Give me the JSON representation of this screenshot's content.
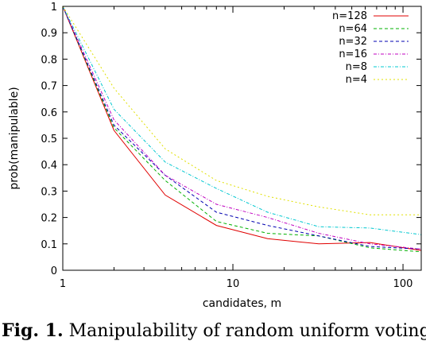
{
  "chart_data": {
    "type": "line",
    "xlabel": "candidates, m",
    "ylabel": "prob(manipulable)",
    "x_scale": "log",
    "xlim": [
      1,
      128
    ],
    "ylim": [
      0,
      1
    ],
    "x_ticks": [
      "1",
      "10",
      "100"
    ],
    "y_ticks": [
      "0",
      "0.1",
      "0.2",
      "0.3",
      "0.4",
      "0.5",
      "0.6",
      "0.7",
      "0.8",
      "0.9",
      "1"
    ],
    "legend_position": "top-right",
    "x": [
      1,
      2,
      4,
      8,
      16,
      32,
      64,
      128
    ],
    "series": [
      {
        "name": "n=128",
        "color": "#e00000",
        "dash": "solid",
        "values": [
          1.0,
          0.53,
          0.285,
          0.17,
          0.12,
          0.1,
          0.105,
          0.075
        ]
      },
      {
        "name": "n=64",
        "color": "#00b000",
        "dash": "dashed",
        "values": [
          1.0,
          0.54,
          0.34,
          0.185,
          0.14,
          0.13,
          0.085,
          0.07
        ]
      },
      {
        "name": "n=32",
        "color": "#0000b0",
        "dash": "dashed",
        "values": [
          1.0,
          0.55,
          0.36,
          0.22,
          0.17,
          0.13,
          0.09,
          0.08
        ]
      },
      {
        "name": "n=16",
        "color": "#c000c0",
        "dash": "dotdash",
        "values": [
          1.0,
          0.57,
          0.36,
          0.25,
          0.2,
          0.14,
          0.1,
          0.08
        ]
      },
      {
        "name": "n=8",
        "color": "#00c8d0",
        "dash": "dotdash",
        "values": [
          1.0,
          0.61,
          0.41,
          0.31,
          0.22,
          0.165,
          0.16,
          0.135
        ]
      },
      {
        "name": "n=4",
        "color": "#e0e000",
        "dash": "dotted",
        "values": [
          1.0,
          0.69,
          0.46,
          0.34,
          0.28,
          0.24,
          0.21,
          0.21
        ]
      }
    ]
  },
  "caption": {
    "label": "Fig. 1.",
    "text": "Manipulability of random uniform voting"
  }
}
